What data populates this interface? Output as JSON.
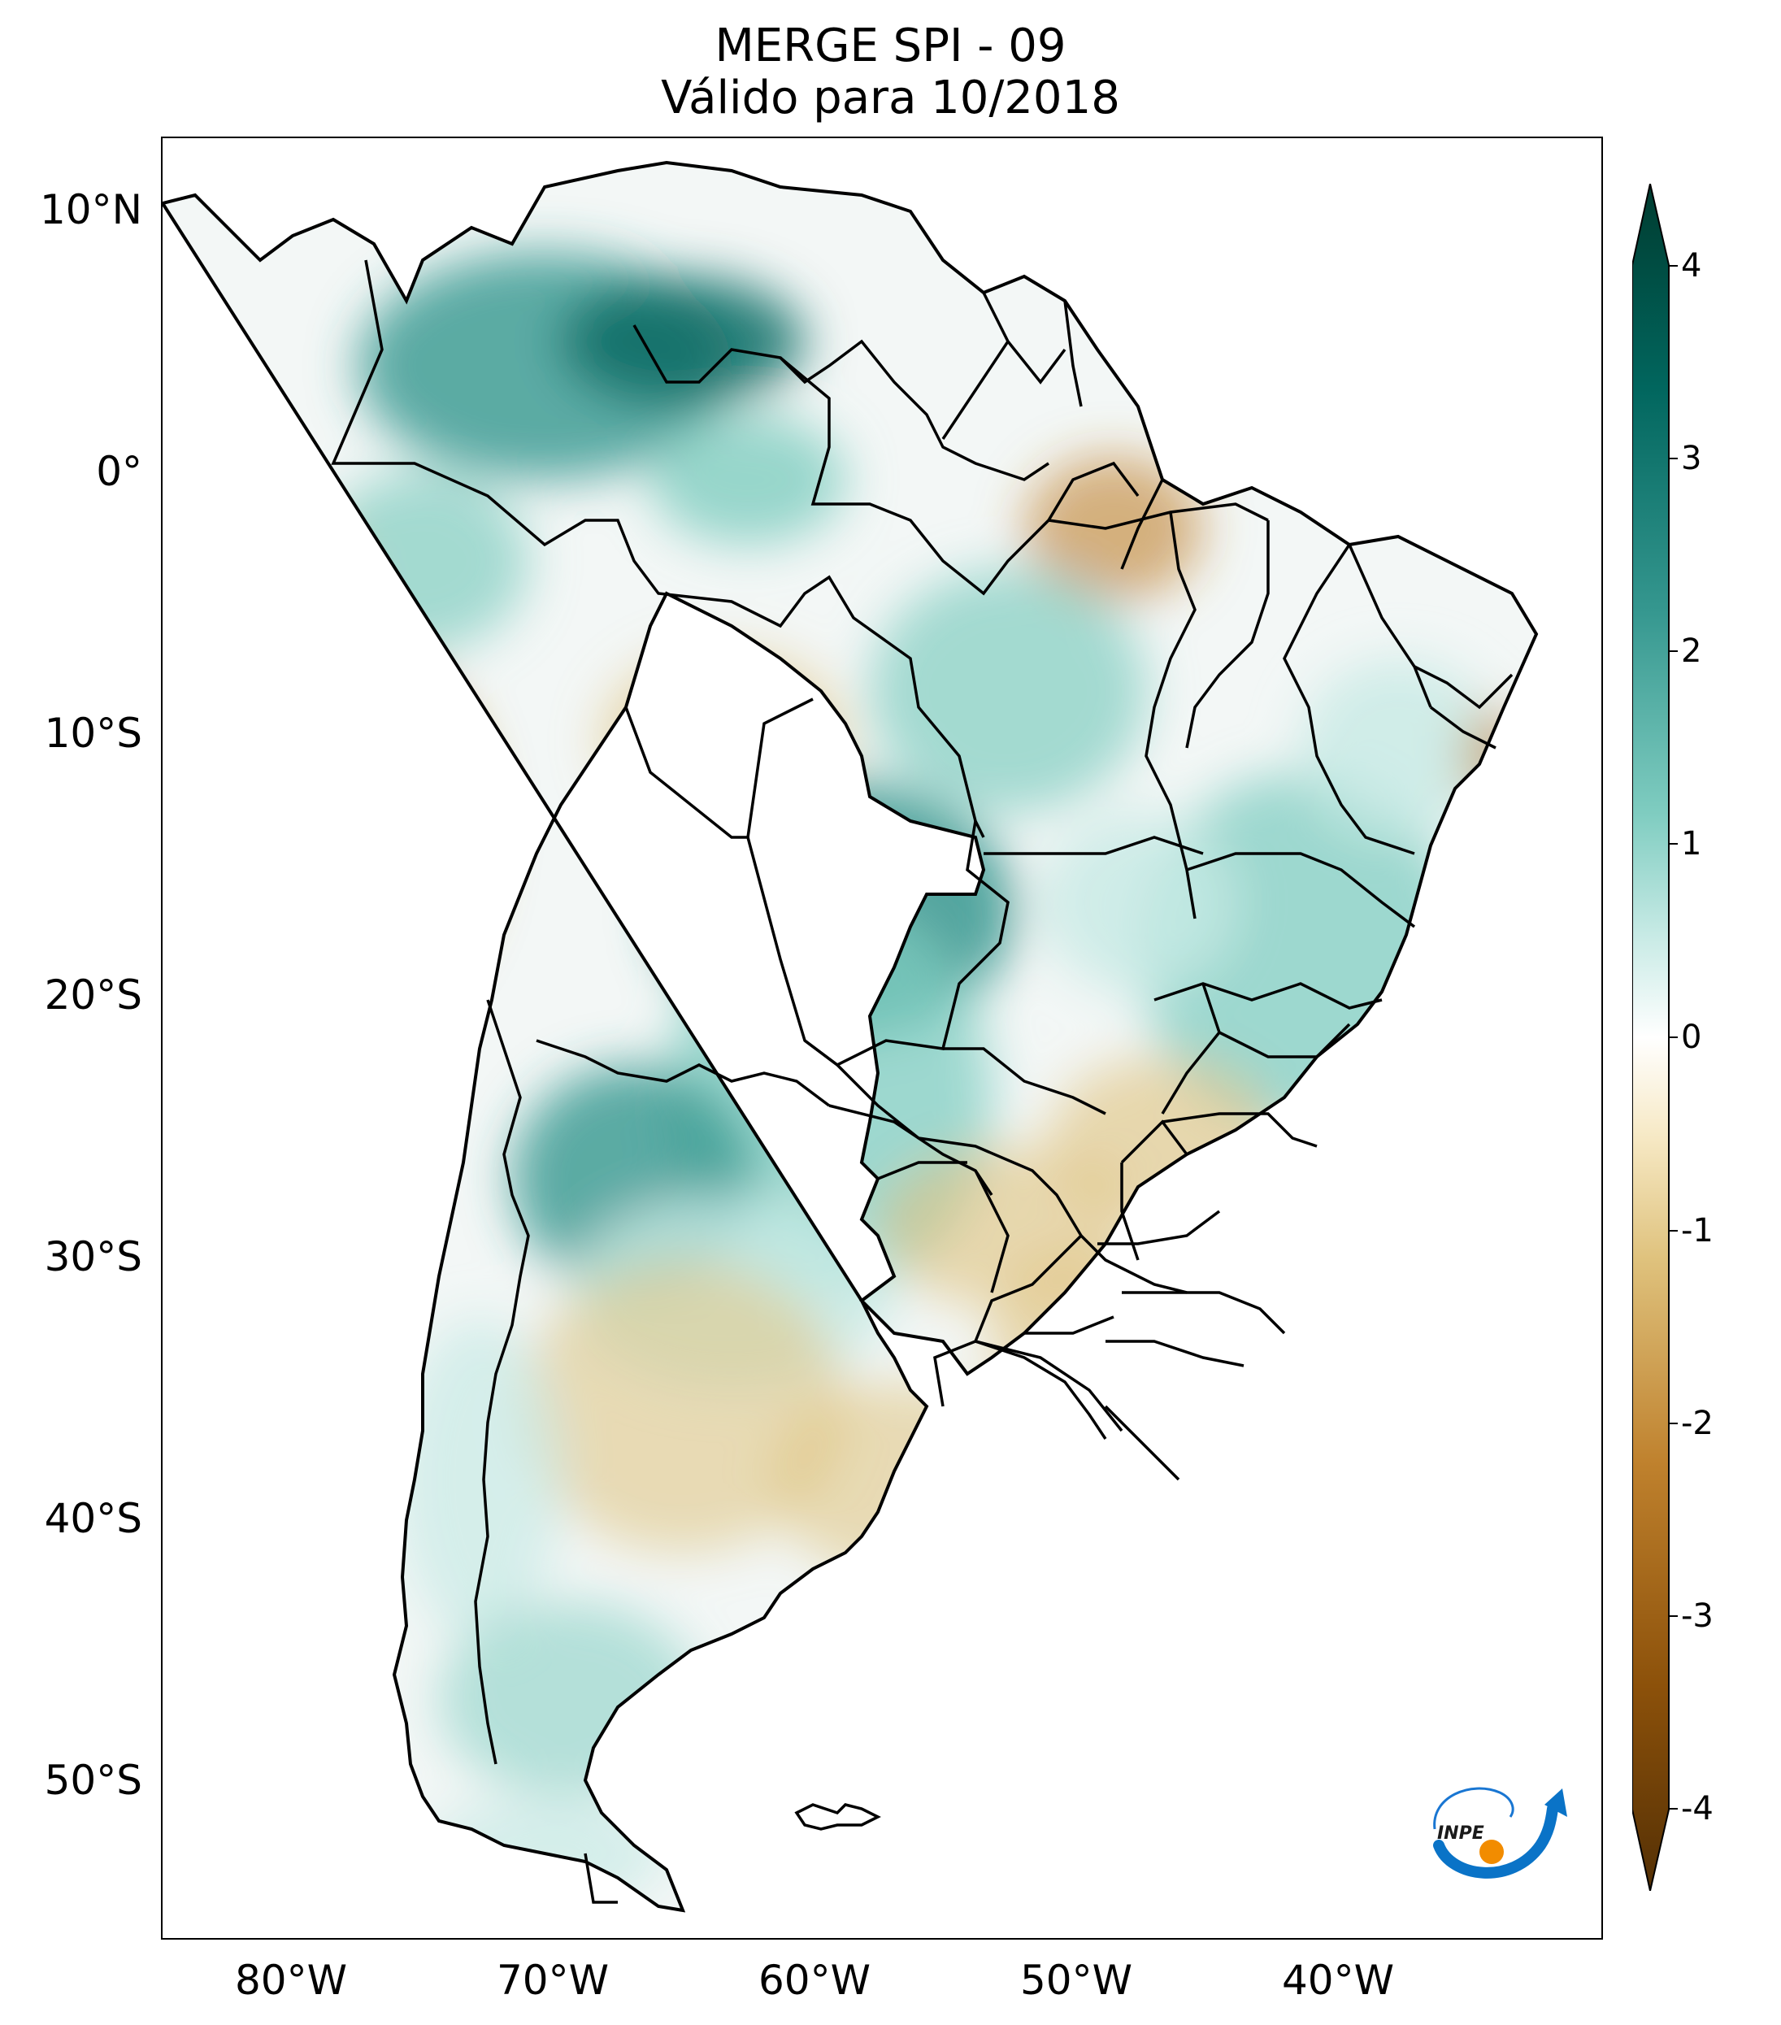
{
  "figure": {
    "title_line1": "MERGE   SPI - 09",
    "title_line2": "Válido para 10/2018"
  },
  "axes": {
    "lat_ticks": [
      "10°N",
      "0°",
      "10°S",
      "20°S",
      "30°S",
      "40°S",
      "50°S"
    ],
    "lon_ticks": [
      "80°W",
      "70°W",
      "60°W",
      "50°W",
      "40°W"
    ]
  },
  "colorbar": {
    "ticks": [
      "4",
      "3",
      "2",
      "1",
      "0",
      "-1",
      "-2",
      "-3",
      "-4"
    ],
    "colors": [
      "#543005",
      "#8c510a",
      "#bf812d",
      "#dfc27d",
      "#f6e8c3",
      "#ffffff",
      "#c7eae5",
      "#80cdc1",
      "#35978f",
      "#01665e",
      "#003c30"
    ]
  },
  "logo": {
    "text": "INPE"
  }
}
